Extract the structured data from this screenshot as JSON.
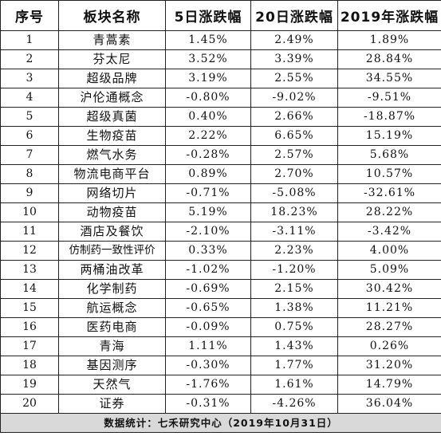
{
  "headers": [
    "序号",
    "板块名称",
    "5日涨跌幅",
    "20日涨跌幅",
    "2019年涨跌幅"
  ],
  "rows": [
    [
      "1",
      "青蒿素",
      "1.45%",
      "2.49%",
      "1.89%"
    ],
    [
      "2",
      "芬太尼",
      "3.52%",
      "3.39%",
      "28.84%"
    ],
    [
      "3",
      "超级品牌",
      "3.19%",
      "2.55%",
      "34.55%"
    ],
    [
      "4",
      "沪伦通概念",
      "-0.80%",
      "-9.02%",
      "-9.51%"
    ],
    [
      "5",
      "超级真菌",
      "0.40%",
      "2.66%",
      "-18.87%"
    ],
    [
      "6",
      "生物疫苗",
      "2.22%",
      "6.65%",
      "15.19%"
    ],
    [
      "7",
      "燃气水务",
      "-0.28%",
      "2.57%",
      "5.68%"
    ],
    [
      "8",
      "物流电商平台",
      "0.89%",
      "2.70%",
      "10.57%"
    ],
    [
      "9",
      "网络切片",
      "-0.71%",
      "-5.08%",
      "-32.61%"
    ],
    [
      "10",
      "动物疫苗",
      "5.19%",
      "18.23%",
      "28.22%"
    ],
    [
      "11",
      "酒店及餐饮",
      "-2.10%",
      "-3.11%",
      "-3.42%"
    ],
    [
      "12",
      "仿制药一致性评价",
      "0.33%",
      "2.23%",
      "4.00%"
    ],
    [
      "13",
      "两桶油改革",
      "-1.02%",
      "-1.20%",
      "5.09%"
    ],
    [
      "14",
      "化学制药",
      "-0.69%",
      "2.15%",
      "30.42%"
    ],
    [
      "15",
      "航运概念",
      "-0.65%",
      "1.38%",
      "11.21%"
    ],
    [
      "16",
      "医药电商",
      "-0.09%",
      "0.75%",
      "28.27%"
    ],
    [
      "17",
      "青海",
      "1.11%",
      "1.43%",
      "0.26%"
    ],
    [
      "18",
      "基因测序",
      "-0.30%",
      "1.77%",
      "31.20%"
    ],
    [
      "19",
      "天然气",
      "-1.76%",
      "1.61%",
      "14.79%"
    ],
    [
      "20",
      "证券",
      "-0.31%",
      "-4.26%",
      "36.04%"
    ]
  ],
  "footer": "数据统计：七禾研究中心（2019年10月31日）"
}
